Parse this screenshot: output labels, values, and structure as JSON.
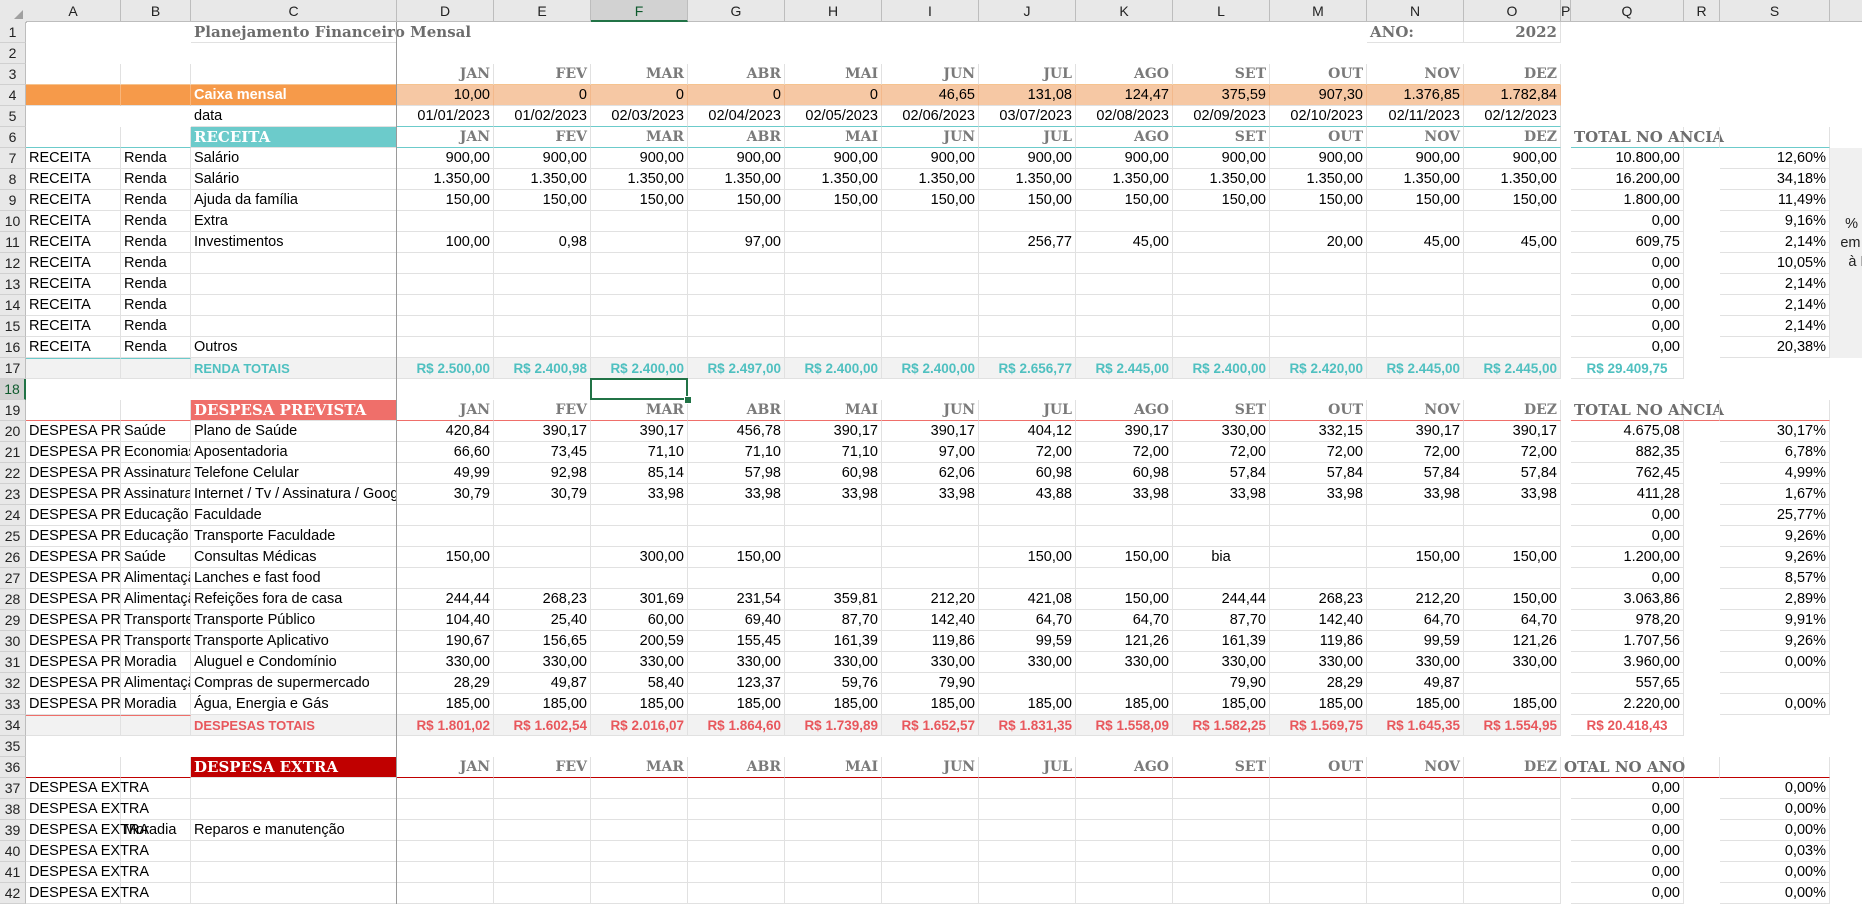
{
  "columns": [
    {
      "id": "A",
      "w": 95
    },
    {
      "id": "B",
      "w": 70
    },
    {
      "id": "C",
      "w": 206
    },
    {
      "id": "D",
      "w": 97
    },
    {
      "id": "E",
      "w": 97
    },
    {
      "id": "F",
      "w": 97
    },
    {
      "id": "G",
      "w": 97
    },
    {
      "id": "H",
      "w": 97
    },
    {
      "id": "I",
      "w": 97
    },
    {
      "id": "J",
      "w": 97
    },
    {
      "id": "K",
      "w": 97
    },
    {
      "id": "L",
      "w": 97
    },
    {
      "id": "M",
      "w": 97
    },
    {
      "id": "N",
      "w": 97
    },
    {
      "id": "O",
      "w": 97
    },
    {
      "id": "P",
      "w": 10
    },
    {
      "id": "Q",
      "w": 113
    },
    {
      "id": "R",
      "w": 36
    },
    {
      "id": "S",
      "w": 110
    },
    {
      "id": "T",
      "w": 98
    }
  ],
  "selected_column": "F",
  "selected_row": 18,
  "row_count": 42,
  "colors": {
    "caixa_fill": "#f6c8a4",
    "caixa_label_fill": "#f69a4a",
    "receita_fill": "#6ccbcb",
    "receita_text": "#4fc0c0",
    "despesa_prev_fill": "#ef6f6a",
    "despesa_prev_text": "#e8575c",
    "despesa_extra_fill": "#c00000",
    "totals_fill": "#f2f2f2",
    "select_green": "#217346"
  },
  "title": {
    "main": "Planejamento Financeiro Mensal",
    "ano_label": "ANO:",
    "ano_value": "2022"
  },
  "months": [
    "JAN",
    "FEV",
    "MAR",
    "ABR",
    "MAI",
    "JUN",
    "JUL",
    "AGO",
    "SET",
    "OUT",
    "NOV",
    "DEZ"
  ],
  "caixa": {
    "label": "Caixa mensal",
    "values": [
      "10,00",
      "0",
      "0",
      "0",
      "0",
      "46,65",
      "131,08",
      "124,47",
      "375,59",
      "907,30",
      "1.376,85",
      "1.782,84"
    ]
  },
  "data_row": {
    "label": "data",
    "values": [
      "01/01/2023",
      "01/02/2023",
      "02/03/2023",
      "02/04/2023",
      "02/05/2023",
      "02/06/2023",
      "03/07/2023",
      "02/08/2023",
      "02/09/2023",
      "02/10/2023",
      "02/11/2023",
      "02/12/2023"
    ]
  },
  "receita": {
    "header": "RECEITA",
    "total_header": "TOTAL NO ANCIA",
    "rows": [
      {
        "a": "RECEITA",
        "b": "Renda",
        "c": "Salário",
        "v": [
          "900,00",
          "900,00",
          "900,00",
          "900,00",
          "900,00",
          "900,00",
          "900,00",
          "900,00",
          "900,00",
          "900,00",
          "900,00",
          "900,00"
        ],
        "q": "10.800,00",
        "s": "12,60%"
      },
      {
        "a": "RECEITA",
        "b": "Renda",
        "c": "Salário",
        "v": [
          "1.350,00",
          "1.350,00",
          "1.350,00",
          "1.350,00",
          "1.350,00",
          "1.350,00",
          "1.350,00",
          "1.350,00",
          "1.350,00",
          "1.350,00",
          "1.350,00",
          "1.350,00"
        ],
        "q": "16.200,00",
        "s": "34,18%"
      },
      {
        "a": "RECEITA",
        "b": "Renda",
        "c": "Ajuda da família",
        "v": [
          "150,00",
          "150,00",
          "150,00",
          "150,00",
          "150,00",
          "150,00",
          "150,00",
          "150,00",
          "150,00",
          "150,00",
          "150,00",
          "150,00"
        ],
        "q": "1.800,00",
        "s": "11,49%"
      },
      {
        "a": "RECEITA",
        "b": "Renda",
        "c": "Extra",
        "v": [
          "",
          "",
          "",
          "",
          "",
          "",
          "",
          "",
          "",
          "",
          "",
          ""
        ],
        "q": "0,00",
        "s": "9,16%"
      },
      {
        "a": "RECEITA",
        "b": "Renda",
        "c": "Investimentos",
        "v": [
          "100,00",
          "0,98",
          "",
          "97,00",
          "",
          "",
          "256,77",
          "45,00",
          "",
          "20,00",
          "45,00",
          "45,00"
        ],
        "q": "609,75",
        "s": "2,14%"
      },
      {
        "a": "RECEITA",
        "b": "Renda",
        "c": "",
        "v": [
          "",
          "",
          "",
          "",
          "",
          "",
          "",
          "",
          "",
          "",
          "",
          ""
        ],
        "q": "0,00",
        "s": "10,05%"
      },
      {
        "a": "RECEITA",
        "b": "Renda",
        "c": "",
        "v": [
          "",
          "",
          "",
          "",
          "",
          "",
          "",
          "",
          "",
          "",
          "",
          ""
        ],
        "q": "0,00",
        "s": "2,14%"
      },
      {
        "a": "RECEITA",
        "b": "Renda",
        "c": "",
        "v": [
          "",
          "",
          "",
          "",
          "",
          "",
          "",
          "",
          "",
          "",
          "",
          ""
        ],
        "q": "0,00",
        "s": "2,14%"
      },
      {
        "a": "RECEITA",
        "b": "Renda",
        "c": "",
        "v": [
          "",
          "",
          "",
          "",
          "",
          "",
          "",
          "",
          "",
          "",
          "",
          ""
        ],
        "q": "0,00",
        "s": "2,14%"
      },
      {
        "a": "RECEITA",
        "b": "Renda",
        "c": "Outros",
        "v": [
          "",
          "",
          "",
          "",
          "",
          "",
          "",
          "",
          "",
          "",
          "",
          ""
        ],
        "q": "0,00",
        "s": "20,38%"
      }
    ],
    "totals_label": "RENDA TOTAIS",
    "totals": [
      "R$ 2.500,00",
      "R$ 2.400,98",
      "R$ 2.400,00",
      "R$ 2.497,00",
      "R$ 2.400,00",
      "R$ 2.400,00",
      "R$ 2.656,77",
      "R$ 2.445,00",
      "R$ 2.400,00",
      "R$ 2.420,00",
      "R$ 2.445,00",
      "R$ 2.445,00"
    ],
    "grand_total": "R$ 29.409,75",
    "note": "% Ganhos em Relação à Receita Total"
  },
  "despesa_prevista": {
    "header": "DESPESA PREVISTA",
    "total_header": "TOTAL NO ANCIA",
    "rows": [
      {
        "a": "DESPESA PREVISTA",
        "b": "Saúde",
        "c": "Plano de Saúde",
        "v": [
          "420,84",
          "390,17",
          "390,17",
          "456,78",
          "390,17",
          "390,17",
          "404,12",
          "390,17",
          "330,00",
          "332,15",
          "390,17",
          "390,17"
        ],
        "q": "4.675,08",
        "s": "30,17%"
      },
      {
        "a": "DESPESA PREVISTA",
        "b": "Economias",
        "c": "Aposentadoria",
        "v": [
          "66,60",
          "73,45",
          "71,10",
          "71,10",
          "71,10",
          "97,00",
          "72,00",
          "72,00",
          "72,00",
          "72,00",
          "72,00",
          "72,00"
        ],
        "q": "882,35",
        "s": "6,78%"
      },
      {
        "a": "DESPESA PREVISTA",
        "b": "Assinaturas",
        "c": "Telefone Celular",
        "v": [
          "49,99",
          "92,98",
          "85,14",
          "57,98",
          "60,98",
          "62,06",
          "60,98",
          "60,98",
          "57,84",
          "57,84",
          "57,84",
          "57,84"
        ],
        "q": "762,45",
        "s": "4,99%"
      },
      {
        "a": "DESPESA PREVISTA",
        "b": "Assinaturas",
        "c": "Internet / Tv / Assinatura / Google",
        "v": [
          "30,79",
          "30,79",
          "33,98",
          "33,98",
          "33,98",
          "33,98",
          "43,88",
          "33,98",
          "33,98",
          "33,98",
          "33,98",
          "33,98"
        ],
        "q": "411,28",
        "s": "1,67%"
      },
      {
        "a": "DESPESA PREVISTA",
        "b": "Educação",
        "c": "Faculdade",
        "v": [
          "",
          "",
          "",
          "",
          "",
          "",
          "",
          "",
          "",
          "",
          "",
          ""
        ],
        "q": "0,00",
        "s": "25,77%"
      },
      {
        "a": "DESPESA PREVISTA",
        "b": "Educação",
        "c": "Transporte Faculdade",
        "v": [
          "",
          "",
          "",
          "",
          "",
          "",
          "",
          "",
          "",
          "",
          "",
          ""
        ],
        "q": "0,00",
        "s": "9,26%"
      },
      {
        "a": "DESPESA PREVISTA",
        "b": "Saúde",
        "c": "Consultas Médicas",
        "v": [
          "150,00",
          "",
          "300,00",
          "150,00",
          "",
          "",
          "150,00",
          "150,00",
          "bia",
          "",
          "150,00",
          "150,00"
        ],
        "q": "1.200,00",
        "s": "9,26%"
      },
      {
        "a": "DESPESA PREVISTA",
        "b": "Alimentação",
        "c": "Lanches e fast food",
        "v": [
          "",
          "",
          "",
          "",
          "",
          "",
          "",
          "",
          "",
          "",
          "",
          ""
        ],
        "q": "0,00",
        "s": "8,57%"
      },
      {
        "a": "DESPESA PREVISTA",
        "b": "Alimentação",
        "c": "Refeições fora de casa",
        "v": [
          "244,44",
          "268,23",
          "301,69",
          "231,54",
          "359,81",
          "212,20",
          "421,08",
          "150,00",
          "244,44",
          "268,23",
          "212,20",
          "150,00"
        ],
        "q": "3.063,86",
        "s": "2,89%"
      },
      {
        "a": "DESPESA PREVISTA",
        "b": "Transporte",
        "c": "Transporte Público",
        "v": [
          "104,40",
          "25,40",
          "60,00",
          "69,40",
          "87,70",
          "142,40",
          "64,70",
          "64,70",
          "87,70",
          "142,40",
          "64,70",
          "64,70"
        ],
        "q": "978,20",
        "s": "9,91%"
      },
      {
        "a": "DESPESA PREVISTA",
        "b": "Transporte",
        "c": "Transporte Aplicativo",
        "v": [
          "190,67",
          "156,65",
          "200,59",
          "155,45",
          "161,39",
          "119,86",
          "99,59",
          "121,26",
          "161,39",
          "119,86",
          "99,59",
          "121,26"
        ],
        "q": "1.707,56",
        "s": "9,26%"
      },
      {
        "a": "DESPESA PREVISTA",
        "b": "Moradia",
        "c": "Aluguel e Condomínio",
        "v": [
          "330,00",
          "330,00",
          "330,00",
          "330,00",
          "330,00",
          "330,00",
          "330,00",
          "330,00",
          "330,00",
          "330,00",
          "330,00",
          "330,00"
        ],
        "q": "3.960,00",
        "s": "0,00%"
      },
      {
        "a": "DESPESA PREVISTA",
        "b": "Alimentação",
        "c": "Compras de supermercado",
        "v": [
          "28,29",
          "49,87",
          "58,40",
          "123,37",
          "59,76",
          "79,90",
          "",
          "",
          "79,90",
          "28,29",
          "49,87",
          ""
        ],
        "q": "557,65",
        "s": ""
      },
      {
        "a": "DESPESA PREVISTA",
        "b": "Moradia",
        "c": "Água, Energia e Gás",
        "v": [
          "185,00",
          "185,00",
          "185,00",
          "185,00",
          "185,00",
          "185,00",
          "185,00",
          "185,00",
          "185,00",
          "185,00",
          "185,00",
          "185,00"
        ],
        "q": "2.220,00",
        "s": "0,00%"
      }
    ],
    "totals_label": "DESPESAS TOTAIS",
    "totals": [
      "R$ 1.801,02",
      "R$ 1.602,54",
      "R$ 2.016,07",
      "R$ 1.864,60",
      "R$ 1.739,89",
      "R$ 1.652,57",
      "R$ 1.831,35",
      "R$ 1.558,09",
      "R$ 1.582,25",
      "R$ 1.569,75",
      "R$ 1.645,35",
      "R$ 1.554,95"
    ],
    "grand_total": "R$ 20.418,43"
  },
  "despesa_extra": {
    "header": "DESPESA EXTRA",
    "total_header": "OTAL NO ANO",
    "rows": [
      {
        "a": "DESPESA EXTRA",
        "b": "",
        "c": "",
        "q": "0,00",
        "s": "0,00%"
      },
      {
        "a": "DESPESA EXTRA",
        "b": "",
        "c": "",
        "q": "0,00",
        "s": "0,00%"
      },
      {
        "a": "DESPESA EXTRA",
        "b": "Moradia",
        "c": "Reparos e manutenção",
        "q": "0,00",
        "s": "0,00%"
      },
      {
        "a": "DESPESA EXTRA",
        "b": "",
        "c": "",
        "q": "0,00",
        "s": "0,03%"
      },
      {
        "a": "DESPESA EXTRA",
        "b": "",
        "c": "",
        "q": "0,00",
        "s": "0,00%"
      },
      {
        "a": "DESPESA EXTRA",
        "b": "",
        "c": "",
        "q": "0,00",
        "s": "0,00%"
      }
    ]
  }
}
